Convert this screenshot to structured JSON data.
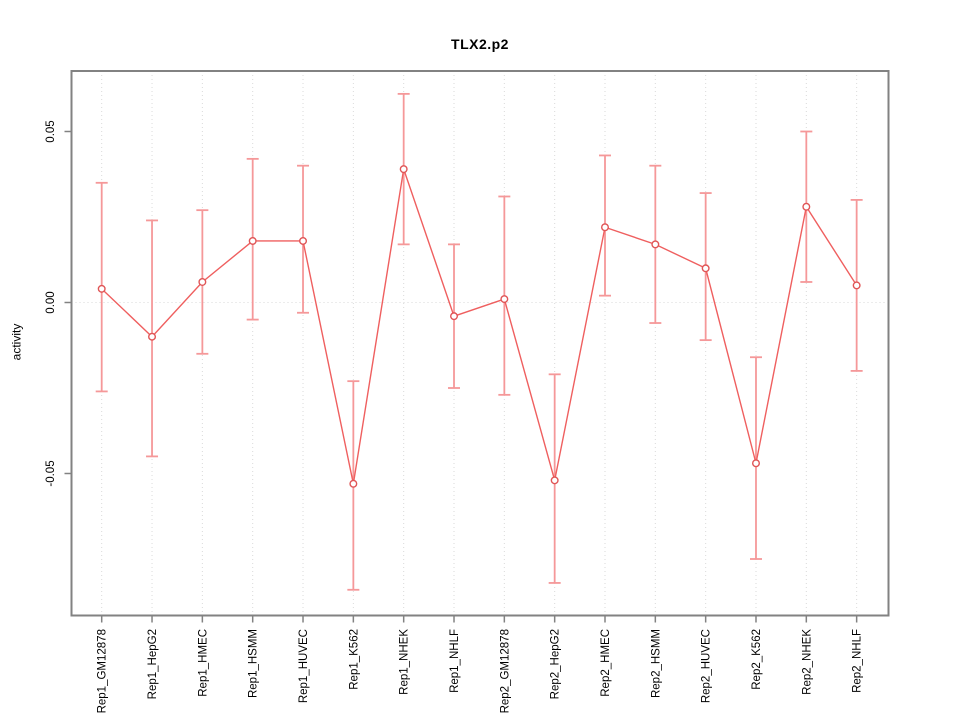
{
  "chart_data": {
    "type": "line",
    "title": "TLX2.p2",
    "xlabel": "",
    "ylabel": "activity",
    "legend": "none",
    "grid": "dotted vertical line at every category; dotted horizontal line at y=0",
    "marker": "open-circle",
    "error_bars": true,
    "ylim": [
      -0.091,
      0.068
    ],
    "yticks": [
      0.05,
      0.0,
      -0.05
    ],
    "ytick_labels": [
      "0.05",
      "0.00",
      "-0.05"
    ],
    "categories": [
      "Rep1_GM12878",
      "Rep1_HepG2",
      "Rep1_HMEC",
      "Rep1_HSMM",
      "Rep1_HUVEC",
      "Rep1_K562",
      "Rep1_NHEK",
      "Rep1_NHLF",
      "Rep2_GM12878",
      "Rep2_HepG2",
      "Rep2_HMEC",
      "Rep2_HSMM",
      "Rep2_HUVEC",
      "Rep2_K562",
      "Rep2_NHEK",
      "Rep2_NHLF"
    ],
    "series": [
      {
        "name": "activity",
        "values": [
          0.004,
          -0.01,
          0.006,
          0.018,
          0.018,
          -0.053,
          0.039,
          -0.004,
          0.001,
          -0.052,
          0.022,
          0.017,
          0.01,
          -0.047,
          0.028,
          0.005
        ],
        "upper": [
          0.035,
          0.024,
          0.027,
          0.042,
          0.04,
          -0.023,
          0.061,
          0.017,
          0.031,
          -0.021,
          0.043,
          0.04,
          0.032,
          -0.016,
          0.05,
          0.03
        ],
        "lower": [
          -0.026,
          -0.045,
          -0.015,
          -0.005,
          -0.003,
          -0.084,
          0.017,
          -0.025,
          -0.027,
          -0.082,
          0.002,
          -0.006,
          -0.011,
          -0.075,
          0.006,
          -0.02
        ]
      }
    ],
    "colors": {
      "series_line": "#ef5f5f",
      "error_bar": "#f59899",
      "marker_stroke": "#e05556",
      "marker_fill": "#ffffff",
      "grid_line": "#dadada",
      "frame": "#828282",
      "tick": "#828282",
      "text": "#000000"
    }
  }
}
